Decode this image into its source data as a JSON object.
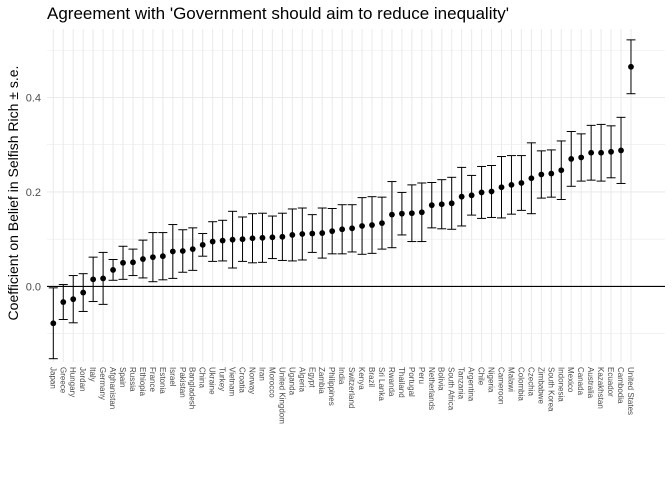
{
  "chart_data": {
    "type": "scatter",
    "title": "Agreement with 'Government should aim to reduce inequality'",
    "ylabel": "Coefficient on Belief in Selfish Rich ± s.e.",
    "xlabel": "",
    "ylim": [
      -0.16,
      0.545
    ],
    "yticks": [
      0.0,
      0.2,
      0.4
    ],
    "ytick_labels": [
      "0.0",
      "0.2",
      "0.4"
    ],
    "grid": true,
    "reference_line": 0.0,
    "errorbars": true,
    "colors": {
      "point": "#000000",
      "grid": "#ebebeb",
      "background": "#ffffff"
    },
    "categories": [
      "Japan",
      "Greece",
      "Hungary",
      "Jordan",
      "Italy",
      "Germany",
      "Afghanistan",
      "Spain",
      "Russia",
      "Ethiopia",
      "France",
      "Estonia",
      "Israel",
      "Pakistan",
      "Bangladesh",
      "China",
      "Ukraine",
      "Turkey",
      "Vietnam",
      "Croatia",
      "Norway",
      "Iran",
      "Morocco",
      "United Kingdom",
      "Uganda",
      "Algeria",
      "Egypt",
      "Zambia",
      "Philippines",
      "India",
      "Switzerland",
      "Kenya",
      "Brazil",
      "Sri Lanka",
      "Rwanda",
      "Thailand",
      "Portugal",
      "Peru",
      "Netherlands",
      "Bolivia",
      "South Africa",
      "Tanzania",
      "Argentina",
      "Chile",
      "Nigeria",
      "Cameroon",
      "Malawi",
      "Colombia",
      "Czechia",
      "Zimbabwe",
      "South Korea",
      "Indonesia",
      "Mexico",
      "Canada",
      "Australia",
      "Kazakhstan",
      "Ecuador",
      "Cambodia",
      "United States"
    ],
    "values": [
      -0.078,
      -0.033,
      -0.027,
      -0.013,
      0.015,
      0.017,
      0.035,
      0.05,
      0.051,
      0.058,
      0.062,
      0.064,
      0.074,
      0.075,
      0.079,
      0.088,
      0.095,
      0.097,
      0.099,
      0.1,
      0.102,
      0.103,
      0.104,
      0.105,
      0.109,
      0.111,
      0.112,
      0.113,
      0.117,
      0.121,
      0.123,
      0.128,
      0.13,
      0.134,
      0.152,
      0.154,
      0.155,
      0.157,
      0.172,
      0.174,
      0.176,
      0.19,
      0.193,
      0.199,
      0.201,
      0.21,
      0.215,
      0.219,
      0.229,
      0.237,
      0.239,
      0.246,
      0.27,
      0.273,
      0.283,
      0.283,
      0.285,
      0.288,
      0.465
    ],
    "errors": [
      0.075,
      0.037,
      0.05,
      0.04,
      0.047,
      0.055,
      0.022,
      0.035,
      0.028,
      0.04,
      0.052,
      0.05,
      0.057,
      0.045,
      0.045,
      0.024,
      0.042,
      0.043,
      0.06,
      0.047,
      0.052,
      0.052,
      0.045,
      0.05,
      0.055,
      0.055,
      0.04,
      0.053,
      0.048,
      0.052,
      0.05,
      0.06,
      0.06,
      0.055,
      0.07,
      0.045,
      0.06,
      0.062,
      0.048,
      0.052,
      0.055,
      0.062,
      0.042,
      0.055,
      0.055,
      0.065,
      0.062,
      0.058,
      0.075,
      0.05,
      0.05,
      0.062,
      0.058,
      0.05,
      0.058,
      0.06,
      0.055,
      0.07,
      0.057
    ]
  }
}
